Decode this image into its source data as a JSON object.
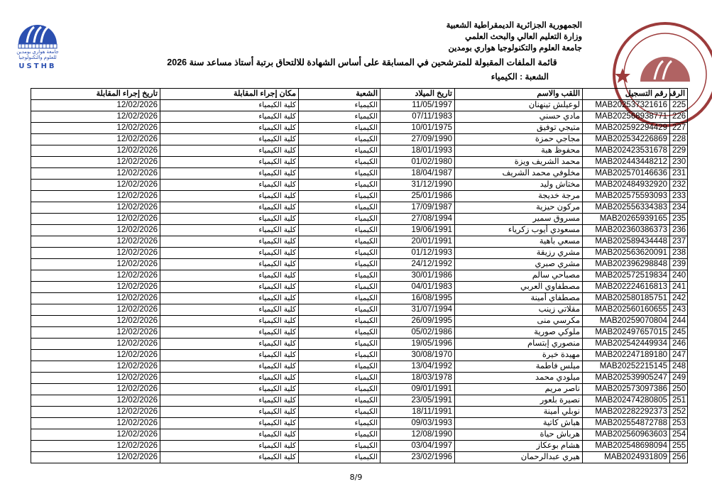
{
  "header": {
    "line1": "الجمهورية الجزائرية الديمقراطية الشعبية",
    "line2": "وزارة التعليم العالي والبحث العلمي",
    "line3": "جامعة العلوم والتكنولوجيا هواري بومدين",
    "logo_text": "USTHB",
    "logo_arabic": "جامعة هواري بومدين للعلوم والتكنولوجيا"
  },
  "title": "قائمة الملفات المقبولة للمترشحين  في المسابقة على أساس الشهادة للالتحاق برتبة أستاذ مساعد سنة 2026",
  "branch_label": "الشعبة :  الكيمياء",
  "colors": {
    "logo": "#2b4fb0",
    "stamp": "#8b1a1a"
  },
  "table": {
    "headers": [
      "الرقم",
      "رقم التسجيل",
      "اللقب والاسم",
      "تاريخ الميلاد",
      "الشعبة",
      "مكان إجراء المقابلة",
      "تاريخ إجراء المقابلة"
    ],
    "rows": [
      [
        "225",
        "MAB202537321616",
        "لوعيلش تينهنان",
        "11/05/1997",
        "الكيمياء",
        "كلية الكيمياء",
        "12/02/2026"
      ],
      [
        "226",
        "MAB202568938771",
        "مادي حسني",
        "07/11/1983",
        "الكيمياء",
        "كلية الكيمياء",
        "12/02/2026"
      ],
      [
        "227",
        "MAB202592294429",
        "متيجي توفيق",
        "10/01/1975",
        "الكيمياء",
        "كلية الكيمياء",
        "12/02/2026"
      ],
      [
        "228",
        "MAB202534226869",
        "مجاجي حمزة",
        "27/09/1990",
        "الكيمياء",
        "كلية الكيمياء",
        "12/02/2026"
      ],
      [
        "229",
        "MAB202423531678",
        "محفوظ هبة",
        "18/01/1993",
        "الكيمياء",
        "كلية الكيمياء",
        "12/02/2026"
      ],
      [
        "230",
        "MAB202443448212",
        "محمد الشريف  ويزة",
        "01/02/1980",
        "الكيمياء",
        "كلية الكيمياء",
        "12/02/2026"
      ],
      [
        "231",
        "MAB202570146636",
        "مخلوفي محمد الشريف",
        "18/04/1987",
        "الكيمياء",
        "كلية الكيمياء",
        "12/02/2026"
      ],
      [
        "232",
        "MAB202484932920",
        "مختاش وليد",
        "31/12/1990",
        "الكيمياء",
        "كلية الكيمياء",
        "12/02/2026"
      ],
      [
        "233",
        "MAB202575593093",
        "مرجة خديجة",
        "25/01/1986",
        "الكيمياء",
        "كلية الكيمياء",
        "12/02/2026"
      ],
      [
        "234",
        "MAB202556334383",
        "مركون حيزية",
        "17/09/1987",
        "الكيمياء",
        "كلية الكيمياء",
        "12/02/2026"
      ],
      [
        "235",
        "MAB20265939165",
        "مسروق سمير",
        "27/08/1994",
        "الكيمياء",
        "كلية الكيمياء",
        "12/02/2026"
      ],
      [
        "236",
        "MAB202360386373",
        "مسعودي أيوب زكرياء",
        "19/06/1991",
        "الكيمياء",
        "كلية الكيمياء",
        "12/02/2026"
      ],
      [
        "237",
        "MAB202589434448",
        "مسعي باهية",
        "20/01/1991",
        "الكيمياء",
        "كلية الكيمياء",
        "12/02/2026"
      ],
      [
        "238",
        "MAB202563620091",
        "مشري رزيقة",
        "01/12/1993",
        "الكيمياء",
        "كلية الكيمياء",
        "12/02/2026"
      ],
      [
        "239",
        "MAB202396298848",
        "مشري صبري",
        "24/12/1992",
        "الكيمياء",
        "كلية الكيمياء",
        "12/02/2026"
      ],
      [
        "240",
        "MAB202572519834",
        "مصباحي سالم",
        "30/01/1986",
        "الكيمياء",
        "كلية الكيمياء",
        "12/02/2026"
      ],
      [
        "241",
        "MAB202224616813",
        "مصطفاوي العربي",
        "04/01/1983",
        "الكيمياء",
        "كلية الكيمياء",
        "12/02/2026"
      ],
      [
        "242",
        "MAB202580185751",
        "مصطفاي أمينة",
        "16/08/1995",
        "الكيمياء",
        "كلية الكيمياء",
        "12/02/2026"
      ],
      [
        "243",
        "MAB202560160655",
        "مقلاتي زينب",
        "31/07/1994",
        "الكيمياء",
        "كلية الكيمياء",
        "12/02/2026"
      ],
      [
        "244",
        "MAB20259070804",
        "مكرسي منى",
        "26/09/1995",
        "الكيمياء",
        "كلية الكيمياء",
        "12/02/2026"
      ],
      [
        "245",
        "MAB202497657015",
        "ملوكي صورية",
        "05/02/1986",
        "الكيمياء",
        "كلية الكيمياء",
        "12/02/2026"
      ],
      [
        "246",
        "MAB202542449934",
        "منصوري إبتسام",
        "19/05/1996",
        "الكيمياء",
        "كلية الكيمياء",
        "12/02/2026"
      ],
      [
        "247",
        "MAB202247189180",
        "مهيدة خيرة",
        "30/08/1970",
        "الكيمياء",
        "كلية الكيمياء",
        "12/02/2026"
      ],
      [
        "248",
        "MAB20252215145",
        "ميلس فاطمة",
        "13/04/1992",
        "الكيمياء",
        "كلية الكيمياء",
        "12/02/2026"
      ],
      [
        "249",
        "MAB202539905247",
        "ميلودي محمد",
        "18/03/1978",
        "الكيمياء",
        "كلية الكيمياء",
        "12/02/2026"
      ],
      [
        "250",
        "MAB202573097386",
        "ناصر مريم",
        "09/01/1991",
        "الكيمياء",
        "كلية الكيمياء",
        "12/02/2026"
      ],
      [
        "251",
        "MAB202474280805",
        "نصيرة بلعور",
        "23/05/1991",
        "الكيمياء",
        "كلية الكيمياء",
        "12/02/2026"
      ],
      [
        "252",
        "MAB202282292373",
        "نوبلي أمينة",
        "18/11/1991",
        "الكيمياء",
        "كلية الكيمياء",
        "12/02/2026"
      ],
      [
        "253",
        "MAB202554872788",
        "هباش  كاتية",
        "09/03/1993",
        "الكيمياء",
        "كلية الكيمياء",
        "12/02/2026"
      ],
      [
        "254",
        "MAB202560963603",
        "هرباش حياة",
        "12/08/1990",
        "الكيمياء",
        "كلية الكيمياء",
        "12/02/2026"
      ],
      [
        "255",
        "MAB202548698094",
        "هشام بوعكاز",
        "03/04/1997",
        "الكيمياء",
        "كلية الكيمياء",
        "12/02/2026"
      ],
      [
        "256",
        "MAB2024931809",
        "هيري عبدالرحمان",
        "23/02/1996",
        "الكيمياء",
        "كلية الكيمياء",
        "12/02/2026"
      ]
    ]
  },
  "page_number": "8/9"
}
